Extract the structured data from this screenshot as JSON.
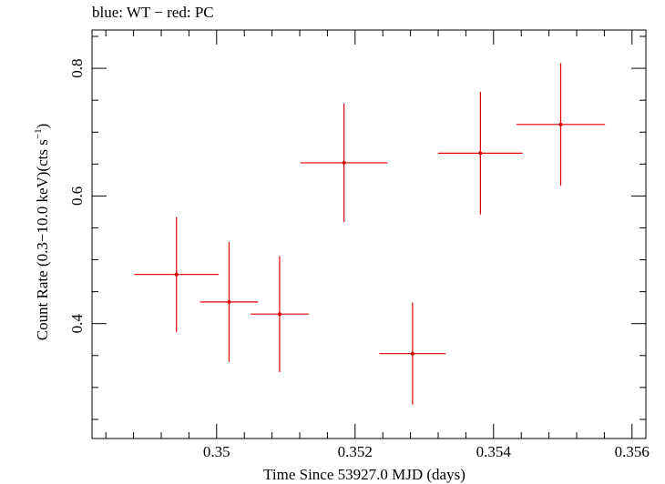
{
  "chart_data": {
    "type": "scatter",
    "title": "blue: WT − red: PC",
    "xlabel": "Time Since 53927.0 MJD (days)",
    "ylabel_main": "Count Rate (0.3−10.0 keV)(cts s",
    "ylabel_sup": "−1",
    "ylabel_tail": ")",
    "xlim": [
      0.3482,
      0.3562
    ],
    "ylim": [
      0.22,
      0.86
    ],
    "x_major_ticks": [
      0.35,
      0.352,
      0.354,
      0.356
    ],
    "x_tick_labels": [
      "0.35",
      "0.352",
      "0.354",
      "0.356"
    ],
    "y_major_ticks": [
      0.4,
      0.6,
      0.8
    ],
    "y_tick_labels": [
      "0.4",
      "0.6",
      "0.8"
    ],
    "grid": false,
    "series": [
      {
        "color": "#e00000",
        "points": [
          {
            "x": 0.34942,
            "y": 0.477,
            "xerr": 0.00061,
            "yerr": 0.09
          },
          {
            "x": 0.35018,
            "y": 0.434,
            "xerr": 0.00042,
            "yerr": 0.094
          },
          {
            "x": 0.35091,
            "y": 0.415,
            "xerr": 0.00042,
            "yerr": 0.091
          },
          {
            "x": 0.35184,
            "y": 0.652,
            "xerr": 0.00063,
            "yerr": 0.093
          },
          {
            "x": 0.35283,
            "y": 0.353,
            "xerr": 0.00048,
            "yerr": 0.08
          },
          {
            "x": 0.35381,
            "y": 0.667,
            "xerr": 0.00061,
            "yerr": 0.096
          },
          {
            "x": 0.35497,
            "y": 0.712,
            "xerr": 0.00064,
            "yerr": 0.096
          }
        ]
      }
    ]
  }
}
